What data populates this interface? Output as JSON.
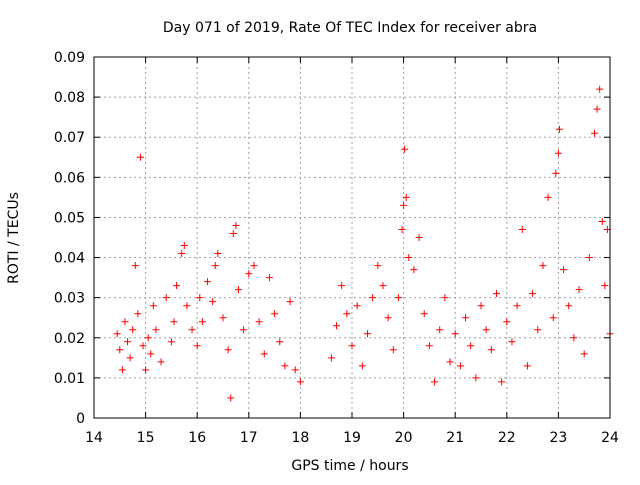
{
  "chart_data": {
    "type": "scatter",
    "title": "Day 071 of 2019, Rate Of TEC Index for receiver abra",
    "xlabel": "GPS time / hours",
    "ylabel": "ROTI / TECUs",
    "xlim": [
      14,
      24
    ],
    "ylim": [
      0,
      0.09
    ],
    "x_ticks": [
      "14",
      "15",
      "16",
      "17",
      "18",
      "19",
      "20",
      "21",
      "22",
      "23",
      "24"
    ],
    "y_ticks": [
      "0",
      "0.01",
      "0.02",
      "0.03",
      "0.04",
      "0.05",
      "0.06",
      "0.07",
      "0.08",
      "0.09"
    ],
    "grid": true,
    "marker": "plus",
    "color": "#ff0000",
    "series": [
      {
        "points": [
          [
            14.45,
            0.021
          ],
          [
            14.5,
            0.017
          ],
          [
            14.55,
            0.012
          ],
          [
            14.6,
            0.024
          ],
          [
            14.65,
            0.019
          ],
          [
            14.7,
            0.015
          ],
          [
            14.75,
            0.022
          ],
          [
            14.8,
            0.038
          ],
          [
            14.85,
            0.026
          ],
          [
            14.9,
            0.065
          ],
          [
            14.95,
            0.018
          ],
          [
            15.0,
            0.012
          ],
          [
            15.05,
            0.02
          ],
          [
            15.1,
            0.016
          ],
          [
            15.15,
            0.028
          ],
          [
            15.2,
            0.022
          ],
          [
            15.3,
            0.014
          ],
          [
            15.4,
            0.03
          ],
          [
            15.5,
            0.019
          ],
          [
            15.55,
            0.024
          ],
          [
            15.6,
            0.033
          ],
          [
            15.7,
            0.041
          ],
          [
            15.75,
            0.043
          ],
          [
            15.8,
            0.028
          ],
          [
            15.9,
            0.022
          ],
          [
            16.0,
            0.018
          ],
          [
            16.05,
            0.03
          ],
          [
            16.1,
            0.024
          ],
          [
            16.2,
            0.034
          ],
          [
            16.3,
            0.029
          ],
          [
            16.35,
            0.038
          ],
          [
            16.4,
            0.041
          ],
          [
            16.5,
            0.025
          ],
          [
            16.6,
            0.017
          ],
          [
            16.65,
            0.005
          ],
          [
            16.7,
            0.046
          ],
          [
            16.75,
            0.048
          ],
          [
            16.8,
            0.032
          ],
          [
            16.9,
            0.022
          ],
          [
            17.0,
            0.036
          ],
          [
            17.1,
            0.038
          ],
          [
            17.2,
            0.024
          ],
          [
            17.3,
            0.016
          ],
          [
            17.4,
            0.035
          ],
          [
            17.5,
            0.026
          ],
          [
            17.6,
            0.019
          ],
          [
            17.7,
            0.013
          ],
          [
            17.8,
            0.029
          ],
          [
            17.9,
            0.012
          ],
          [
            18.0,
            0.009
          ],
          [
            18.6,
            0.015
          ],
          [
            18.7,
            0.023
          ],
          [
            18.8,
            0.033
          ],
          [
            18.9,
            0.026
          ],
          [
            19.0,
            0.018
          ],
          [
            19.1,
            0.028
          ],
          [
            19.2,
            0.013
          ],
          [
            19.3,
            0.021
          ],
          [
            19.4,
            0.03
          ],
          [
            19.5,
            0.038
          ],
          [
            19.6,
            0.033
          ],
          [
            19.7,
            0.025
          ],
          [
            19.8,
            0.017
          ],
          [
            19.9,
            0.03
          ],
          [
            19.97,
            0.047
          ],
          [
            20.0,
            0.053
          ],
          [
            20.02,
            0.067
          ],
          [
            20.05,
            0.055
          ],
          [
            20.1,
            0.04
          ],
          [
            20.2,
            0.037
          ],
          [
            20.3,
            0.045
          ],
          [
            20.4,
            0.026
          ],
          [
            20.5,
            0.018
          ],
          [
            20.6,
            0.009
          ],
          [
            20.7,
            0.022
          ],
          [
            20.8,
            0.03
          ],
          [
            20.9,
            0.014
          ],
          [
            21.0,
            0.021
          ],
          [
            21.1,
            0.013
          ],
          [
            21.2,
            0.025
          ],
          [
            21.3,
            0.018
          ],
          [
            21.4,
            0.01
          ],
          [
            21.5,
            0.028
          ],
          [
            21.6,
            0.022
          ],
          [
            21.7,
            0.017
          ],
          [
            21.8,
            0.031
          ],
          [
            21.9,
            0.009
          ],
          [
            22.0,
            0.024
          ],
          [
            22.1,
            0.019
          ],
          [
            22.2,
            0.028
          ],
          [
            22.3,
            0.047
          ],
          [
            22.4,
            0.013
          ],
          [
            22.5,
            0.031
          ],
          [
            22.6,
            0.022
          ],
          [
            22.7,
            0.038
          ],
          [
            22.8,
            0.055
          ],
          [
            22.9,
            0.025
          ],
          [
            22.95,
            0.061
          ],
          [
            23.0,
            0.066
          ],
          [
            23.02,
            0.072
          ],
          [
            23.1,
            0.037
          ],
          [
            23.2,
            0.028
          ],
          [
            23.3,
            0.02
          ],
          [
            23.4,
            0.032
          ],
          [
            23.5,
            0.016
          ],
          [
            23.6,
            0.04
          ],
          [
            23.7,
            0.071
          ],
          [
            23.75,
            0.077
          ],
          [
            23.8,
            0.082
          ],
          [
            23.85,
            0.049
          ],
          [
            23.9,
            0.033
          ],
          [
            23.95,
            0.047
          ],
          [
            24.0,
            0.021
          ]
        ]
      }
    ]
  }
}
